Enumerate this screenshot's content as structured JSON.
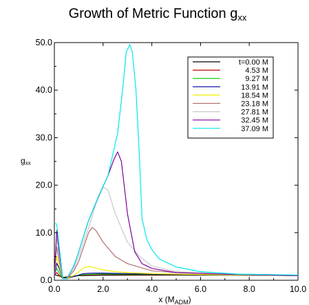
{
  "chart_data": {
    "type": "line",
    "title": "Growth of Metric Function g",
    "title_sub": "xx",
    "xlabel": "x (M",
    "xlabel_sub": "ADM",
    "xlabel_end": ")",
    "ylabel": "g",
    "ylabel_sub": "xx",
    "xlim": [
      0,
      10
    ],
    "ylim": [
      0,
      50
    ],
    "grid": false,
    "legend_position": "top-right",
    "x_ticks": [
      {
        "value": 0,
        "label": "0.0"
      },
      {
        "value": 2,
        "label": "2.0"
      },
      {
        "value": 4,
        "label": "4.0"
      },
      {
        "value": 6,
        "label": "6.0"
      },
      {
        "value": 8,
        "label": "8.0"
      },
      {
        "value": 10,
        "label": "10.0"
      }
    ],
    "y_ticks": [
      {
        "value": 0,
        "label": "0.0"
      },
      {
        "value": 10,
        "label": "10.0"
      },
      {
        "value": 20,
        "label": "20.0"
      },
      {
        "value": 30,
        "label": "30.0"
      },
      {
        "value": 40,
        "label": "40.0"
      },
      {
        "value": 50,
        "label": "50.0"
      }
    ],
    "series": [
      {
        "name": "t=0.00 M",
        "color": "#000000",
        "x": [
          0.0,
          0.2,
          0.35,
          0.5,
          0.8,
          1.2,
          2.0,
          3.0,
          5.0,
          7.5,
          10.0
        ],
        "y": [
          1.2,
          0.9,
          0.6,
          0.7,
          0.9,
          1.0,
          1.05,
          1.08,
          1.08,
          1.05,
          1.0
        ]
      },
      {
        "name": "4.53 M",
        "color": "#c00000",
        "x": [
          0.0,
          0.1,
          0.2,
          0.35,
          0.5,
          0.8,
          1.2,
          2.0,
          3.0,
          5.0,
          7.5,
          10.0
        ],
        "y": [
          1.2,
          1.6,
          1.0,
          0.4,
          0.5,
          0.9,
          1.1,
          1.2,
          1.2,
          1.15,
          1.1,
          1.0
        ]
      },
      {
        "name": "9.27 M",
        "color": "#00c000",
        "x": [
          0.0,
          0.1,
          0.2,
          0.35,
          0.5,
          0.8,
          1.2,
          2.0,
          3.0,
          5.0,
          7.5,
          10.0
        ],
        "y": [
          1.2,
          2.5,
          1.5,
          0.3,
          0.4,
          0.8,
          1.2,
          1.3,
          1.3,
          1.2,
          1.1,
          1.0
        ]
      },
      {
        "name": "13.91 M",
        "color": "#0000a0",
        "x": [
          0.0,
          0.1,
          0.2,
          0.35,
          0.5,
          0.8,
          1.2,
          1.6,
          2.0,
          3.0,
          5.0,
          7.5,
          10.0
        ],
        "y": [
          1.2,
          3.6,
          2.5,
          0.3,
          0.3,
          0.8,
          1.4,
          1.5,
          1.5,
          1.4,
          1.25,
          1.1,
          1.0
        ]
      },
      {
        "name": "18.54 M",
        "color": "#f0f000",
        "x": [
          0.0,
          0.1,
          0.2,
          0.35,
          0.5,
          0.8,
          1.0,
          1.2,
          1.4,
          1.6,
          2.0,
          2.5,
          3.0,
          4.0,
          5.0,
          7.5,
          10.0
        ],
        "y": [
          1.2,
          5.0,
          3.0,
          0.3,
          0.3,
          1.0,
          1.8,
          2.6,
          2.9,
          2.7,
          2.2,
          1.8,
          1.6,
          1.4,
          1.3,
          1.1,
          1.0
        ]
      },
      {
        "name": "23.18 M",
        "color": "#b07070",
        "x": [
          0.0,
          0.1,
          0.2,
          0.35,
          0.5,
          0.8,
          1.0,
          1.2,
          1.4,
          1.55,
          1.7,
          2.0,
          2.5,
          3.0,
          4.0,
          5.0,
          7.5,
          10.0
        ],
        "y": [
          1.2,
          7.0,
          4.0,
          0.3,
          0.3,
          2.0,
          4.0,
          7.0,
          10.0,
          11.1,
          10.5,
          8.0,
          5.0,
          3.5,
          2.0,
          1.6,
          1.2,
          1.0
        ]
      },
      {
        "name": "27.81 M",
        "color": "#c8c8c8",
        "x": [
          0.0,
          0.1,
          0.2,
          0.35,
          0.5,
          0.8,
          1.0,
          1.4,
          1.7,
          2.0,
          2.2,
          2.5,
          3.0,
          3.5,
          4.0,
          5.0,
          7.5,
          10.0
        ],
        "y": [
          1.2,
          9.0,
          5.0,
          0.3,
          0.3,
          2.5,
          5.0,
          11.0,
          16.0,
          19.6,
          19.0,
          14.0,
          8.0,
          5.0,
          3.0,
          1.8,
          1.2,
          1.0
        ]
      },
      {
        "name": "32.45 M",
        "color": "#8000a0",
        "x": [
          0.0,
          0.1,
          0.2,
          0.35,
          0.5,
          0.8,
          1.0,
          1.4,
          1.8,
          2.2,
          2.45,
          2.6,
          2.75,
          3.0,
          3.3,
          3.6,
          4.0,
          5.0,
          7.5,
          10.0
        ],
        "y": [
          1.2,
          10.5,
          6.0,
          0.3,
          0.3,
          3.0,
          6.0,
          12.5,
          17.5,
          22.0,
          25.5,
          27.0,
          25.0,
          14.0,
          6.0,
          3.5,
          2.5,
          1.6,
          1.2,
          1.0
        ]
      },
      {
        "name": "37.09 M",
        "color": "#00e8e8",
        "x": [
          0.0,
          0.1,
          0.2,
          0.35,
          0.5,
          0.8,
          1.0,
          1.4,
          1.8,
          2.2,
          2.6,
          2.8,
          2.95,
          3.1,
          3.2,
          3.35,
          3.5,
          3.6,
          3.8,
          4.0,
          4.3,
          5.0,
          6.0,
          7.5,
          10.0
        ],
        "y": [
          12.0,
          11.8,
          7.0,
          0.3,
          0.3,
          3.0,
          6.0,
          12.5,
          17.5,
          22.0,
          31.0,
          40.0,
          48.0,
          49.6,
          48.0,
          40.0,
          25.0,
          13.0,
          8.5,
          6.5,
          4.5,
          2.8,
          1.8,
          1.3,
          1.1
        ]
      }
    ]
  }
}
